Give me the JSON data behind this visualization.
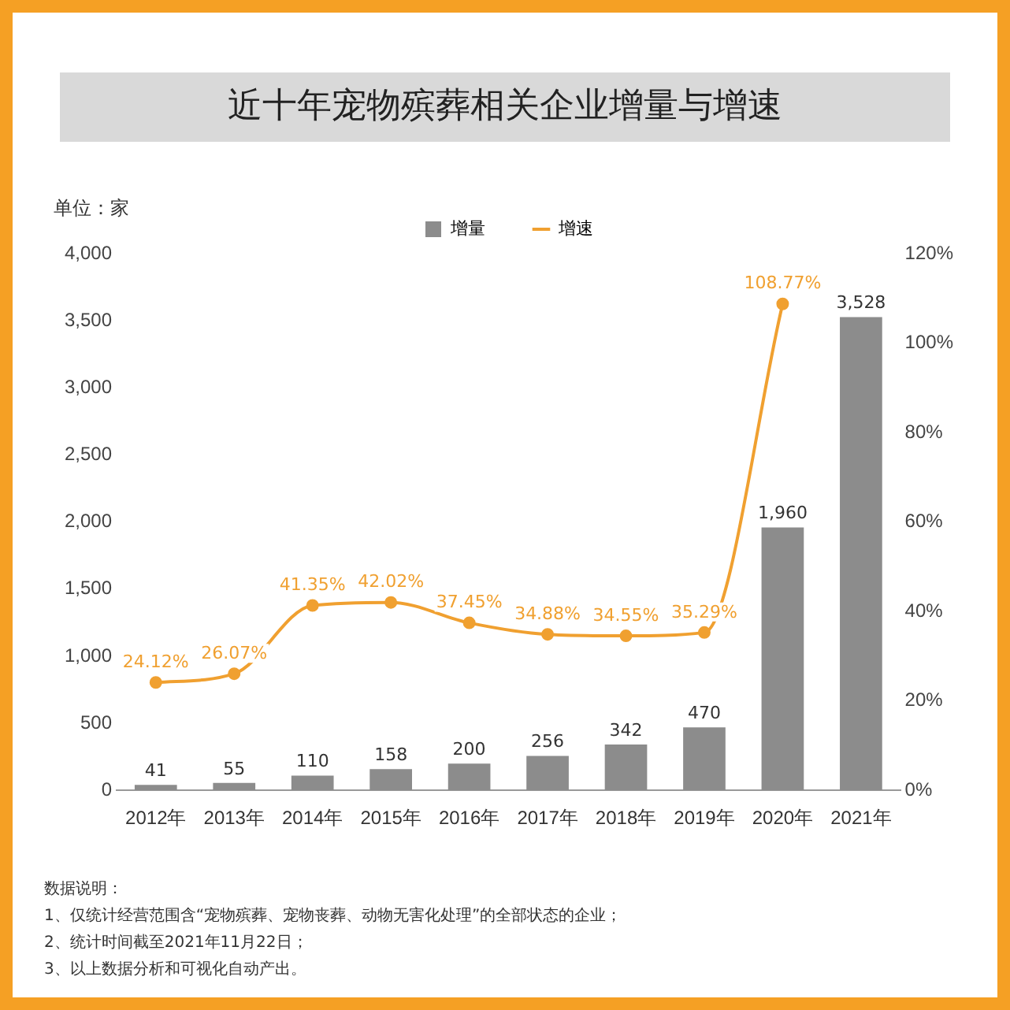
{
  "chart_data": {
    "type": "bar",
    "title": "近十年宠物殡葬相关企业增量与增速",
    "ylabel": "单位：家",
    "categories": [
      "2012年",
      "2013年",
      "2014年",
      "2015年",
      "2016年",
      "2017年",
      "2018年",
      "2019年",
      "2020年",
      "2021年"
    ],
    "series": [
      {
        "name": "增量",
        "color": "#8c8c8c",
        "values": [
          41,
          55,
          110,
          158,
          200,
          256,
          342,
          470,
          1960,
          3528
        ],
        "value_labels": [
          "41",
          "55",
          "110",
          "158",
          "200",
          "256",
          "342",
          "470",
          "1,960",
          "3,528"
        ]
      },
      {
        "name": "增速",
        "type": "line",
        "axis": "y2",
        "color": "#f0a030",
        "values": [
          24.12,
          26.07,
          41.35,
          42.02,
          37.45,
          34.88,
          34.55,
          35.29,
          108.77,
          null
        ],
        "value_labels": [
          "24.12%",
          "26.07%",
          "41.35%",
          "42.02%",
          "37.45%",
          "34.88%",
          "34.55%",
          "35.29%",
          "108.77%",
          null
        ]
      }
    ],
    "ylim": [
      0,
      4000
    ],
    "yticks": [
      0,
      {
        "value": 500,
        "label": "500"
      },
      {
        "value": 1000,
        "label": "1,000"
      },
      {
        "value": 1500,
        "label": "1,500"
      },
      {
        "value": 2000,
        "label": "2,000"
      },
      {
        "value": 2500,
        "label": "2,500"
      },
      {
        "value": 3000,
        "label": "3,000"
      },
      {
        "value": 3500,
        "label": "3,500"
      },
      {
        "value": 4000,
        "label": "4,000"
      }
    ],
    "y2lim": [
      0,
      120
    ],
    "y2ticks": [
      {
        "value": 0,
        "label": "0%"
      },
      {
        "value": 20,
        "label": "20%"
      },
      {
        "value": 40,
        "label": "40%"
      },
      {
        "value": 60,
        "label": "60%"
      },
      {
        "value": 80,
        "label": "80%"
      },
      {
        "value": 100,
        "label": "100%"
      },
      {
        "value": 120,
        "label": "120%"
      }
    ],
    "legend": "top",
    "marker": "circle",
    "annotations": [
      "数据说明：",
      "1、仅统计经营范围含“宠物殡葬、宠物丧葬、动物无害化处理”的全部状态的企业；",
      "2、统计时间截至2021年11月22日；",
      "3、以上数据分析和可视化自动产出。"
    ]
  }
}
